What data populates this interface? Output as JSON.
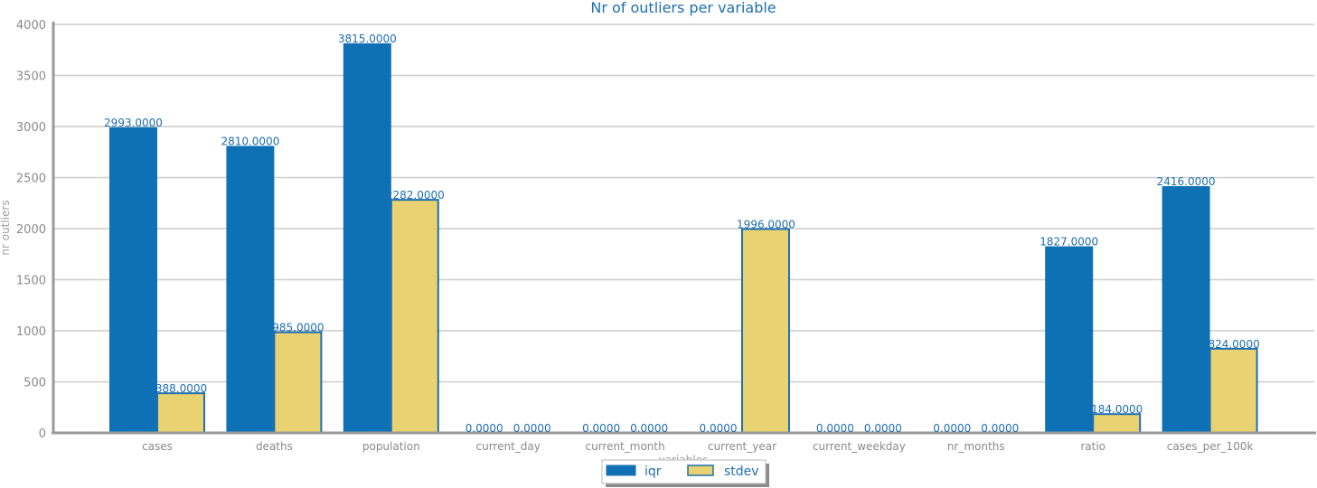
{
  "chart_data": {
    "type": "bar",
    "title": "Nr of outliers per variable",
    "xlabel": "variables",
    "ylabel": "nr outliers",
    "ylim": [
      0,
      4000
    ],
    "yticks": [
      0,
      500,
      1000,
      1500,
      2000,
      2500,
      3000,
      3500,
      4000
    ],
    "grid": true,
    "legend_position": "bottom-center",
    "categories": [
      "cases",
      "deaths",
      "population",
      "current_day",
      "current_month",
      "current_year",
      "current_weekday",
      "nr_months",
      "ratio",
      "cases_per_100k"
    ],
    "series": [
      {
        "name": "iqr",
        "color": "#0f71b5",
        "values": [
          2993,
          2810,
          3815,
          0,
          0,
          0,
          0,
          0,
          1827,
          2416
        ],
        "labels": [
          "2993.0000",
          "2810.0000",
          "3815.0000",
          "0.0000",
          "0.0000",
          "0.0000",
          "0.0000",
          "0.0000",
          "1827.0000",
          "2416.0000"
        ]
      },
      {
        "name": "stdev",
        "color": "#e9d272",
        "edge_color": "#1f6fb0",
        "values": [
          388,
          985,
          2282,
          0,
          0,
          1996,
          0,
          0,
          184,
          824
        ],
        "labels": [
          "388.0000",
          "985.0000",
          "2282.0000",
          "0.0000",
          "0.0000",
          "1996.0000",
          "0.0000",
          "0.0000",
          "184.0000",
          "824.0000"
        ]
      }
    ]
  }
}
